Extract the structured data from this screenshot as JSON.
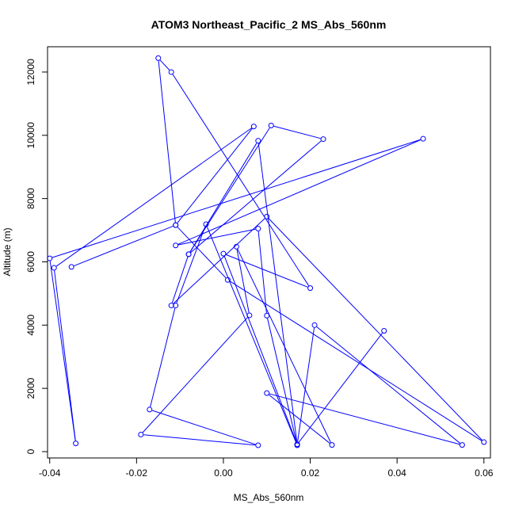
{
  "chart_data": {
    "type": "line",
    "title": "ATOM3 Northeast_Pacific_2 MS_Abs_560nm",
    "xlabel": "MS_Abs_560nm",
    "ylabel": "Altitude (m)",
    "xlim": [
      -0.0405,
      0.0615
    ],
    "ylim": [
      -200,
      12800
    ],
    "xticks": [
      -0.04,
      -0.02,
      0.0,
      0.02,
      0.04,
      0.06
    ],
    "xtick_labels": [
      "-0.04",
      "-0.02",
      "0.00",
      "0.02",
      "0.04",
      "0.06"
    ],
    "yticks": [
      0,
      2000,
      4000,
      6000,
      8000,
      10000,
      12000
    ],
    "ytick_labels": [
      "0",
      "2000",
      "4000",
      "6000",
      "8000",
      "10000",
      "12000"
    ],
    "grid": false,
    "legend": false,
    "series": [
      {
        "color": "#0000ff",
        "marker": "open-circle",
        "x": [
          0.037,
          0.017,
          0.008,
          -0.008,
          0.011,
          0.023,
          -0.008,
          -0.012,
          0.01,
          0.06,
          0.001,
          -0.011,
          0.007,
          -0.039,
          -0.034,
          -0.04,
          0.046,
          -0.011,
          0.008,
          0.01,
          0.017,
          -0.004,
          -0.011,
          -0.017,
          0.008,
          -0.019,
          0.006,
          0.003,
          0.025,
          0.01,
          0.055,
          0.021,
          0.017,
          0.0,
          0.02,
          -0.012,
          -0.015,
          -0.011,
          -0.035
        ],
        "y": [
          3820,
          230,
          9830,
          6240,
          10310,
          9880,
          6240,
          4620,
          7430,
          300,
          5430,
          7160,
          10280,
          5810,
          260,
          6110,
          9890,
          6520,
          7050,
          4300,
          200,
          7190,
          4620,
          1330,
          200,
          540,
          4310,
          6480,
          210,
          1850,
          210,
          4000,
          230,
          6260,
          5170,
          12000,
          12440,
          7160,
          5840
        ]
      }
    ]
  }
}
